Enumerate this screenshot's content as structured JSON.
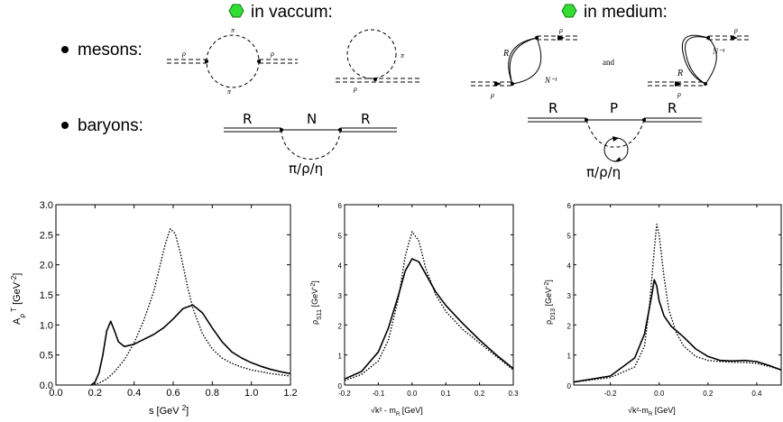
{
  "header": {
    "vacuum_label": "in vaccum:",
    "medium_label": "in medium:",
    "marker_color": "#33dd33"
  },
  "rows": {
    "mesons_label": "mesons:",
    "baryons_label": "baryons:"
  },
  "diagrams": {
    "vacuum_meson_loop": {
      "rho_in": "ρ",
      "rho_out": "ρ",
      "pi_top": "π",
      "pi_bottom": "π"
    },
    "vacuum_meson_tadpole": {
      "pi": "π",
      "rho": "ρ"
    },
    "medium_meson_1": {
      "rho_in": "ρ",
      "rho_out": "ρ",
      "R": "R",
      "N_inv": "N⁻¹"
    },
    "and_label": "and",
    "medium_meson_2": {
      "rho_in": "ρ",
      "rho_out": "ρ",
      "R": "R",
      "N_inv": "N⁻¹"
    },
    "vacuum_baryon": {
      "R_left": "R",
      "N": "N",
      "R_right": "R",
      "loop": "π/ρ/η"
    },
    "medium_baryon": {
      "R_left": "R",
      "P": "P",
      "R_right": "R",
      "loop": "π/ρ/η"
    }
  },
  "chart_data": [
    {
      "type": "line",
      "xlabel": "s  [GeV²]",
      "ylabel": "A_ρ^T [GeV⁻²]",
      "xlim": [
        0.0,
        1.2
      ],
      "ylim": [
        0.0,
        3.0
      ],
      "xticks": [
        "0.0",
        "0.2",
        "0.4",
        "0.6",
        "0.8",
        "1.0",
        "1.2"
      ],
      "yticks": [
        "0.0",
        "0.5",
        "1.0",
        "1.5",
        "2.0",
        "2.5",
        "3.0"
      ],
      "series": [
        {
          "style": "solid",
          "points": [
            [
              0.18,
              0.0
            ],
            [
              0.2,
              0.05
            ],
            [
              0.22,
              0.2
            ],
            [
              0.24,
              0.5
            ],
            [
              0.26,
              0.9
            ],
            [
              0.28,
              1.06
            ],
            [
              0.3,
              0.9
            ],
            [
              0.32,
              0.72
            ],
            [
              0.35,
              0.64
            ],
            [
              0.4,
              0.68
            ],
            [
              0.45,
              0.76
            ],
            [
              0.5,
              0.84
            ],
            [
              0.55,
              0.95
            ],
            [
              0.6,
              1.1
            ],
            [
              0.65,
              1.27
            ],
            [
              0.7,
              1.33
            ],
            [
              0.75,
              1.2
            ],
            [
              0.8,
              0.95
            ],
            [
              0.85,
              0.72
            ],
            [
              0.9,
              0.55
            ],
            [
              0.95,
              0.45
            ],
            [
              1.0,
              0.37
            ],
            [
              1.05,
              0.31
            ],
            [
              1.1,
              0.26
            ],
            [
              1.15,
              0.22
            ],
            [
              1.2,
              0.19
            ]
          ]
        },
        {
          "style": "dotted",
          "points": [
            [
              0.18,
              0.0
            ],
            [
              0.22,
              0.03
            ],
            [
              0.26,
              0.1
            ],
            [
              0.3,
              0.22
            ],
            [
              0.35,
              0.42
            ],
            [
              0.4,
              0.7
            ],
            [
              0.45,
              1.08
            ],
            [
              0.5,
              1.55
            ],
            [
              0.53,
              1.95
            ],
            [
              0.56,
              2.35
            ],
            [
              0.585,
              2.6
            ],
            [
              0.61,
              2.52
            ],
            [
              0.64,
              2.15
            ],
            [
              0.67,
              1.68
            ],
            [
              0.7,
              1.28
            ],
            [
              0.75,
              0.85
            ],
            [
              0.8,
              0.6
            ],
            [
              0.85,
              0.45
            ],
            [
              0.9,
              0.36
            ],
            [
              0.95,
              0.3
            ],
            [
              1.0,
              0.25
            ],
            [
              1.05,
              0.22
            ],
            [
              1.1,
              0.19
            ],
            [
              1.15,
              0.17
            ],
            [
              1.2,
              0.15
            ]
          ]
        }
      ]
    },
    {
      "type": "line",
      "xlabel": "√k² - m_R [GeV]",
      "ylabel": "ρ_S11 [GeV⁻²]",
      "xlim": [
        -0.2,
        0.3
      ],
      "ylim": [
        0,
        6
      ],
      "xticks": [
        "-0.2",
        "-0.1",
        "0.0",
        "0.1",
        "0.2",
        "0.3"
      ],
      "yticks": [
        "0",
        "1",
        "2",
        "3",
        "4",
        "5",
        "6"
      ],
      "series": [
        {
          "style": "solid",
          "points": [
            [
              -0.2,
              0.2
            ],
            [
              -0.15,
              0.45
            ],
            [
              -0.1,
              1.1
            ],
            [
              -0.07,
              1.9
            ],
            [
              -0.04,
              3.0
            ],
            [
              -0.02,
              3.8
            ],
            [
              0.0,
              4.2
            ],
            [
              0.02,
              4.1
            ],
            [
              0.04,
              3.7
            ],
            [
              0.07,
              3.1
            ],
            [
              0.1,
              2.65
            ],
            [
              0.15,
              2.05
            ],
            [
              0.2,
              1.5
            ],
            [
              0.25,
              1.0
            ],
            [
              0.3,
              0.55
            ]
          ]
        },
        {
          "style": "dotted",
          "points": [
            [
              -0.2,
              0.15
            ],
            [
              -0.15,
              0.35
            ],
            [
              -0.1,
              0.8
            ],
            [
              -0.07,
              1.5
            ],
            [
              -0.04,
              2.9
            ],
            [
              -0.02,
              4.3
            ],
            [
              0.0,
              5.1
            ],
            [
              0.02,
              4.8
            ],
            [
              0.04,
              3.9
            ],
            [
              0.07,
              3.0
            ],
            [
              0.1,
              2.45
            ],
            [
              0.15,
              1.85
            ],
            [
              0.2,
              1.4
            ],
            [
              0.25,
              0.95
            ],
            [
              0.3,
              0.5
            ]
          ]
        }
      ]
    },
    {
      "type": "line",
      "xlabel": "√k²-m_R  [GeV]",
      "ylabel": "ρ_D13 [GeV⁻²]",
      "xlim": [
        -0.35,
        0.5
      ],
      "ylim": [
        0,
        6
      ],
      "xticks": [
        "-0.2",
        "0.0",
        "0.2",
        "0.4"
      ],
      "yticks": [
        "0",
        "1",
        "2",
        "3",
        "4",
        "5",
        "6"
      ],
      "series": [
        {
          "style": "solid",
          "points": [
            [
              -0.35,
              0.1
            ],
            [
              -0.2,
              0.3
            ],
            [
              -0.1,
              0.9
            ],
            [
              -0.06,
              1.7
            ],
            [
              -0.03,
              3.0
            ],
            [
              -0.02,
              3.5
            ],
            [
              -0.01,
              3.3
            ],
            [
              0.0,
              2.8
            ],
            [
              0.02,
              2.3
            ],
            [
              0.05,
              1.95
            ],
            [
              0.1,
              1.6
            ],
            [
              0.15,
              1.2
            ],
            [
              0.2,
              0.95
            ],
            [
              0.25,
              0.82
            ],
            [
              0.3,
              0.8
            ],
            [
              0.35,
              0.82
            ],
            [
              0.4,
              0.78
            ],
            [
              0.45,
              0.65
            ],
            [
              0.5,
              0.5
            ]
          ]
        },
        {
          "style": "dotted",
          "points": [
            [
              -0.35,
              0.1
            ],
            [
              -0.2,
              0.25
            ],
            [
              -0.1,
              0.6
            ],
            [
              -0.06,
              1.3
            ],
            [
              -0.04,
              2.6
            ],
            [
              -0.02,
              4.5
            ],
            [
              -0.01,
              5.35
            ],
            [
              0.0,
              5.0
            ],
            [
              0.02,
              3.6
            ],
            [
              0.04,
              2.5
            ],
            [
              0.07,
              1.75
            ],
            [
              0.1,
              1.3
            ],
            [
              0.15,
              0.95
            ],
            [
              0.2,
              0.82
            ],
            [
              0.25,
              0.78
            ],
            [
              0.3,
              0.76
            ],
            [
              0.35,
              0.75
            ],
            [
              0.4,
              0.72
            ],
            [
              0.45,
              0.62
            ],
            [
              0.5,
              0.5
            ]
          ]
        }
      ]
    }
  ]
}
